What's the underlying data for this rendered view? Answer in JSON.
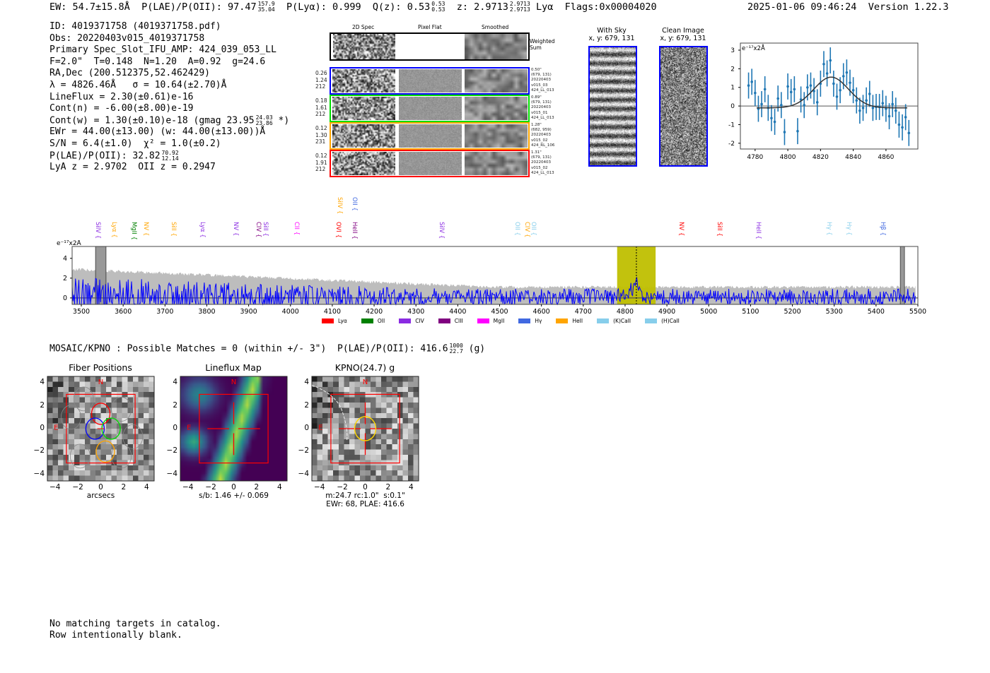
{
  "header": {
    "ew": "EW: 54.7±15.8Å",
    "plae_label": "P(LAE)/P(OII): 97.47",
    "plae_hi": "157.9",
    "plae_lo": "35.04",
    "plya": "P(Lyα): 0.999",
    "qz_label": "Q(z): 0.53",
    "qz_hi": "0.53",
    "qz_lo": "0.53",
    "z_label": "z: 2.9713",
    "z_hi": "2.9713",
    "z_lo": "2.9713",
    "z_line": "Lyα",
    "flags": "Flags:0x00004020",
    "datetime": "2025-01-06 09:46:24",
    "version": "Version 1.22.3"
  },
  "info": {
    "lines": [
      "ID: 4019371758 (4019371758.pdf)",
      "Obs: 20220403v015_4019371758",
      "Primary Spec_Slot_IFU_AMP: 424_039_053_LL",
      "F=2.0\"  T=0.148  N=1.20  A=0.92  g=24.6",
      "RA,Dec (200.512375,52.462429)",
      "λ = 4826.46Å   σ = 10.64(±2.70)Å",
      "LineFlux = 2.30(±0.61)e-16",
      "Cont(n) = -6.00(±8.00)e-19"
    ],
    "contw": "Cont(w) = 1.30(±0.10)e-18 (gmag 23.95",
    "contw_hi": "24.03",
    "contw_lo": "23.86",
    "contw_end": "*)",
    "ewr": "EWr = 44.00(±13.00) (w: 44.00(±13.00))Å",
    "sn": "S/N = 6.4(±1.0)  χ² = 1.0(±0.2)",
    "plae": "P(LAE)/P(OII): 32.82",
    "plae_hi": "70.92",
    "plae_lo": "12.14",
    "z": "LyA z = 2.9702  OII z = 0.2947"
  },
  "spec2d": {
    "col_titles": [
      "2D Spec",
      "Pixel Flat",
      "Smoothed"
    ],
    "weighted_label": "Weighted\nSum",
    "rows": [
      {
        "color": "#0000ff",
        "left": "0.26\n1.24\n212",
        "right": "0.50\"\n(679, 131)\n20220403\nv015_03\n424_LL_013"
      },
      {
        "color": "#00dd00",
        "left": "0.18\n1.61\n212",
        "right": "0.89\"\n(679, 131)\n20220403\nv015_01\n424_LL_013"
      },
      {
        "color": "#ffa500",
        "left": "0.12\n1.30\n231",
        "right": "1.28\"\n(682, 959)\n20220403\nv015_02\n424_RL_106"
      },
      {
        "color": "#ff0000",
        "left": "0.12\n1.91\n212",
        "right": "1.31\"\n(679, 131)\n20220403\nv015_02\n424_LL_013"
      }
    ]
  },
  "cutouts": {
    "with_sky": "With Sky\nx, y: 679, 131",
    "clean": "Clean Image\nx, y: 679, 131"
  },
  "chart_data": [
    {
      "type": "scatter",
      "title": "",
      "ylabel": "e⁻¹⁷x2Å",
      "xlim": [
        4771,
        4879.5
      ],
      "ylim": [
        -2.31,
        3.38
      ],
      "xticks": [
        4780,
        4800,
        4820,
        4840,
        4860
      ],
      "yticks": [
        -2,
        -1,
        0,
        1,
        2,
        3
      ],
      "x": [
        4776,
        4778,
        4780,
        4782,
        4784,
        4786,
        4788,
        4790,
        4792,
        4794,
        4796,
        4798,
        4800,
        4802,
        4804,
        4806,
        4808,
        4810,
        4812,
        4814,
        4816,
        4818,
        4820,
        4822,
        4824,
        4826,
        4828,
        4830,
        4832,
        4834,
        4836,
        4838,
        4840,
        4842,
        4844,
        4846,
        4848,
        4850,
        4852,
        4854,
        4856,
        4858,
        4860,
        4862,
        4864,
        4866,
        4868,
        4870,
        4872,
        4874
      ],
      "y": [
        1.1,
        1.3,
        0.7,
        -0.15,
        0.1,
        0.9,
        -0.1,
        -0.65,
        -0.85,
        0.4,
        0.05,
        -1.4,
        1.05,
        0.75,
        0.9,
        -1.35,
        0.35,
        0.05,
        1.0,
        1.1,
        0.8,
        0.2,
        1.2,
        2.25,
        1.75,
        2.45,
        1.2,
        0.5,
        0.85,
        1.6,
        1.8,
        1.25,
        0.85,
        0.3,
        -0.25,
        -0.1,
        0.3,
        0.65,
        -0.1,
        -0.05,
        -0.05,
        0.15,
        -0.15,
        -0.55,
        0.1,
        -0.25,
        -1.0,
        -1.15,
        -0.6,
        -1.45
      ],
      "yerr": 0.7,
      "fit": {
        "type": "gaussian",
        "center": 4826.5,
        "sigma": 10.64,
        "amplitude": 1.65,
        "baseline": -0.1,
        "range": [
          4781,
          4873
        ]
      }
    },
    {
      "type": "line",
      "ylabel": "e⁻¹⁷x2Å",
      "xlim": [
        3478,
        5500
      ],
      "ylim": [
        -0.65,
        5.2
      ],
      "xticks": [
        3500,
        3600,
        3700,
        3800,
        3900,
        4000,
        4100,
        4200,
        4300,
        4400,
        4500,
        4600,
        4700,
        4800,
        4900,
        5000,
        5100,
        5200,
        5300,
        5400,
        5500
      ],
      "yticks": [
        0,
        2,
        4
      ],
      "highlight": [
        4781,
        4873
      ],
      "line_center": 4827,
      "masked": [
        [
          3534,
          3559
        ],
        [
          5458,
          5468
        ]
      ],
      "lines": [
        {
          "name": "SiIV",
          "w": 3537,
          "c": "#8a2be2",
          "row": 0
        },
        {
          "name": "Lyα",
          "w": 3576,
          "c": "#ffa500",
          "row": 0
        },
        {
          "name": "MgII",
          "w": 3623,
          "c": "#008000",
          "row": 0
        },
        {
          "name": "NV",
          "w": 3652,
          "c": "#ffa500",
          "row": 0
        },
        {
          "name": "SiII",
          "w": 3718,
          "c": "#ffa500",
          "row": 0
        },
        {
          "name": "Lyα",
          "w": 3787,
          "c": "#8a2be2",
          "row": 0
        },
        {
          "name": "NV",
          "w": 3867,
          "c": "#8a2be2",
          "row": 0
        },
        {
          "name": "CIV",
          "w": 3921,
          "c": "#800080",
          "row": 0
        },
        {
          "name": "SiII",
          "w": 3938,
          "c": "#8a2be2",
          "row": 0
        },
        {
          "name": "CII",
          "w": 4012,
          "c": "#ff00ff",
          "row": 0
        },
        {
          "name": "OVI",
          "w": 4112,
          "c": "#ff0000",
          "row": 0
        },
        {
          "name": "HeII",
          "w": 4151,
          "c": "#800080",
          "row": 0
        },
        {
          "name": "SiIV",
          "w": 4115,
          "c": "#ffa500",
          "row": 1
        },
        {
          "name": "OII",
          "w": 4151,
          "c": "#4169e1",
          "row": 1
        },
        {
          "name": "SiIV",
          "w": 4359,
          "c": "#8a2be2",
          "row": 0
        },
        {
          "name": "OII",
          "w": 4540,
          "c": "#87ceeb",
          "row": 0
        },
        {
          "name": "CIV",
          "w": 4563,
          "c": "#ffa500",
          "row": 0
        },
        {
          "name": "OII",
          "w": 4579,
          "c": "#87ceeb",
          "row": 0
        },
        {
          "name": "NV",
          "w": 4932,
          "c": "#ff0000",
          "row": 0
        },
        {
          "name": "SiII",
          "w": 5023,
          "c": "#ff0000",
          "row": 0
        },
        {
          "name": "HeII",
          "w": 5116,
          "c": "#8a2be2",
          "row": 0
        },
        {
          "name": "Hγ",
          "w": 5285,
          "c": "#87ceeb",
          "row": 0
        },
        {
          "name": "Hγ",
          "w": 5333,
          "c": "#87ceeb",
          "row": 0
        },
        {
          "name": "Hβ",
          "w": 5414,
          "c": "#4169e1",
          "row": 0
        }
      ],
      "legend": [
        {
          "label": "Lyα",
          "c": "#ff0000"
        },
        {
          "label": "OII",
          "c": "#008000"
        },
        {
          "label": "CIV",
          "c": "#8a2be2"
        },
        {
          "label": "CIII",
          "c": "#800080"
        },
        {
          "label": "MgII",
          "c": "#ff00ff"
        },
        {
          "label": "Hγ",
          "c": "#4169e1"
        },
        {
          "label": "HeII",
          "c": "#ffa500"
        },
        {
          "label": "(K)CaII",
          "c": "#87ceeb"
        },
        {
          "label": "(H)CaII",
          "c": "#87ceeb"
        }
      ]
    }
  ],
  "catalog": {
    "title": "MOSAIC/KPNO : Possible Matches = 0 (within +/- 3\")  P(LAE)/P(OII): 416.6",
    "hi": "1000",
    "lo": "22.7",
    "band": "(g)"
  },
  "panels": [
    {
      "title": "Fiber Positions",
      "xlabel": "arcsecs"
    },
    {
      "title": "Lineflux Map",
      "xlabel": "s/b: 1.46 +/- 0.069"
    },
    {
      "title": "KPNO(24.7) g",
      "xlabel": "m:24.7 rc:1.0\"  s:0.1\"\nEWr: 68, PLAE: 416.6"
    }
  ],
  "compass": {
    "n": "N",
    "e": "E"
  },
  "panel_ticks": [
    "−4",
    "−2",
    "0",
    "2",
    "4"
  ],
  "footer": [
    "No matching targets in catalog.",
    "Row intentionally blank."
  ]
}
